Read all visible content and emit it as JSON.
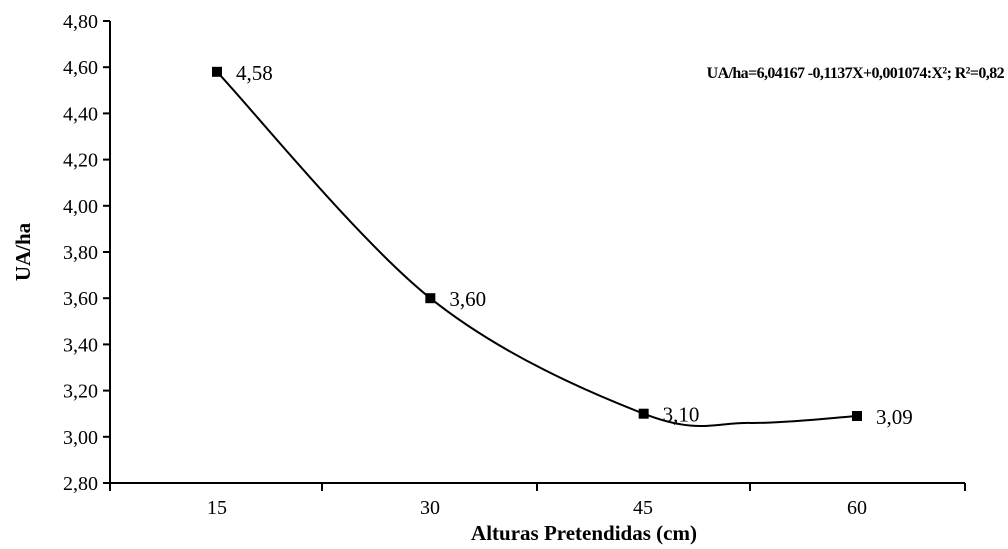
{
  "chart_data": {
    "type": "line",
    "title": "",
    "xlabel": "Alturas Pretendidas (cm)",
    "ylabel": "UA/ha",
    "categories": [
      "15",
      "30",
      "45",
      "60"
    ],
    "x": [
      15,
      30,
      45,
      60
    ],
    "values": [
      4.58,
      3.6,
      3.1,
      3.09
    ],
    "data_labels": [
      "4,58",
      "3,60",
      "3,10",
      "3,09"
    ],
    "ylim": [
      2.8,
      4.8
    ],
    "y_ticks": [
      2.8,
      3.0,
      3.2,
      3.4,
      3.6,
      3.8,
      4.0,
      4.2,
      4.4,
      4.6,
      4.8
    ],
    "y_tick_labels": [
      "2,80",
      "3,00",
      "3,20",
      "3,40",
      "3,60",
      "3,80",
      "4,00",
      "4,20",
      "4,40",
      "4,60",
      "4,80"
    ],
    "x_tick_labels": [
      "15",
      "30",
      "45",
      "60"
    ],
    "regression": {
      "equation": "UA/ha=6,04167 -0,1137X+0,001074:X²; R²=0,82",
      "intercept": 6.04167,
      "linear": -0.1137,
      "quadratic": 0.001074,
      "r_squared": 0.82
    },
    "grid": false,
    "legend": "none",
    "marker": "square",
    "line_color": "#000000",
    "marker_color": "#000000"
  }
}
